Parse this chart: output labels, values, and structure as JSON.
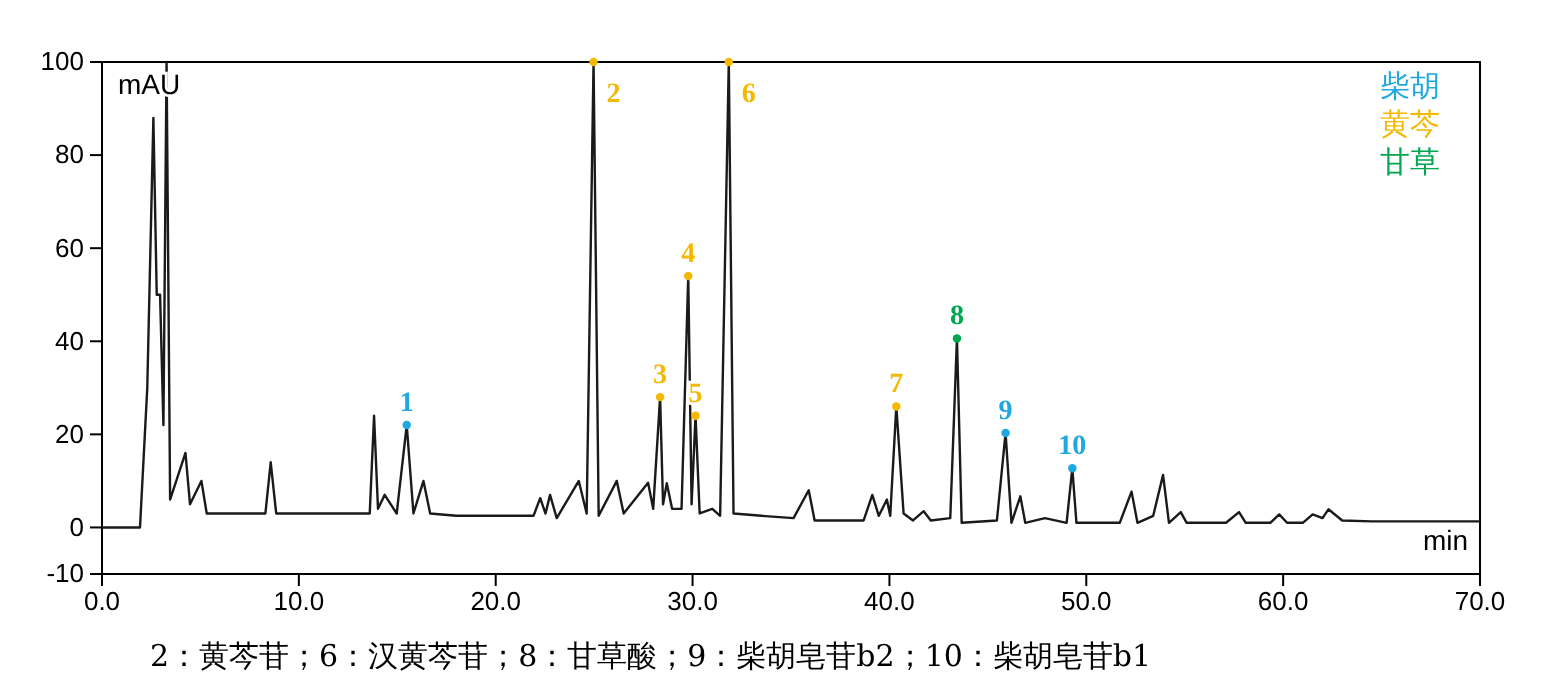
{
  "chart_data": {
    "type": "line",
    "xlabel": "min",
    "ylabel": "mAU",
    "xlim": [
      0,
      70
    ],
    "xticks": [
      {
        "value": 0,
        "label": "0.0"
      },
      {
        "value": 10,
        "label": "10.0"
      },
      {
        "value": 20,
        "label": "20.0"
      },
      {
        "value": 30,
        "label": "30.0"
      },
      {
        "value": 40,
        "label": "40.0"
      },
      {
        "value": 50,
        "label": "50.0"
      },
      {
        "value": 60,
        "label": "60.0"
      },
      {
        "value": 70,
        "label": "70.0"
      }
    ],
    "ylim": [
      -10,
      100
    ],
    "yticks": [
      -10,
      0,
      20,
      40,
      60,
      80,
      100
    ],
    "series": [
      {
        "color": "#1a1a1a",
        "x": [
          0,
          1.93,
          2.3,
          2.61,
          2.78,
          2.95,
          3.12,
          3.28,
          3.46,
          4.24,
          4.47,
          5.05,
          5.32,
          6.5,
          8.3,
          8.57,
          8.85,
          10.5,
          12,
          13.6,
          13.82,
          14.02,
          14.36,
          14.97,
          15.48,
          15.82,
          16.33,
          16.67,
          18,
          20,
          21.92,
          22.26,
          22.53,
          22.76,
          23.1,
          24.22,
          24.62,
          24.97,
          25.23,
          26.15,
          26.5,
          27.74,
          28.0,
          28.35,
          28.5,
          28.69,
          28.96,
          29.44,
          29.78,
          29.95,
          30.15,
          30.36,
          31.0,
          31.4,
          31.84,
          32.08,
          33.5,
          35.13,
          35.9,
          36.2,
          38.69,
          39.13,
          39.46,
          39.87,
          40.04,
          40.35,
          40.72,
          41.2,
          41.74,
          42.1,
          43.09,
          43.43,
          43.67,
          45.46,
          45.9,
          46.2,
          46.65,
          46.9,
          47.9,
          49.0,
          49.29,
          49.5,
          51.7,
          52.3,
          52.6,
          53.4,
          53.9,
          54.2,
          54.8,
          55.1,
          57.1,
          57.76,
          58.1,
          59.35,
          59.8,
          60.2,
          61.0,
          61.5,
          62.0,
          62.3,
          63.0,
          64.5,
          70
        ],
        "values": [
          0,
          0,
          30,
          88,
          50,
          50,
          22,
          100,
          6,
          16,
          5,
          10,
          3,
          3,
          3,
          14,
          3,
          3,
          3,
          3,
          24,
          4,
          7,
          3,
          22,
          3,
          10,
          3,
          2.5,
          2.5,
          2.5,
          6.3,
          3,
          7,
          2,
          10,
          3,
          100,
          2.5,
          10,
          3,
          9.6,
          4,
          28,
          5,
          9.5,
          4,
          4,
          54,
          5,
          24,
          3,
          4,
          2.5,
          100,
          3,
          2.5,
          2,
          8,
          1.5,
          1.5,
          7,
          2.5,
          6,
          2.5,
          26,
          3,
          1.5,
          3.5,
          1.5,
          2,
          40.6,
          1,
          1.5,
          20.3,
          1,
          6.7,
          1,
          2,
          1,
          12.7,
          1,
          1,
          7.7,
          1,
          2.5,
          11.3,
          1,
          3.3,
          1,
          1,
          3.3,
          1,
          1,
          2.8,
          1,
          1,
          2.8,
          2,
          3.9,
          1.5,
          1.3,
          1.3
        ]
      },
      {
        "type": "scatter",
        "marker": "circle",
        "name": "柴胡",
        "color": "#1ea7e1",
        "x": [
          15.48,
          45.9,
          49.29
        ],
        "values": [
          22,
          20.3,
          12.7
        ]
      },
      {
        "type": "scatter",
        "marker": "circle",
        "name": "黄芩",
        "color": "#f5b800",
        "x": [
          24.97,
          28.35,
          29.78,
          30.15,
          31.84,
          40.35
        ],
        "values": [
          100,
          28,
          54,
          24,
          100,
          26
        ]
      },
      {
        "type": "scatter",
        "marker": "circle",
        "name": "甘草",
        "color": "#00a650",
        "x": [
          43.43
        ],
        "values": [
          40.6
        ]
      }
    ],
    "annotations": [
      {
        "text": "1",
        "x": 15.48,
        "y": 22
      },
      {
        "text": "9",
        "x": 45.9,
        "y": 20.3
      },
      {
        "text": "10",
        "x": 49.29,
        "y": 12.7
      },
      {
        "text": "2",
        "x": 24.97,
        "y": 100
      },
      {
        "text": "3",
        "x": 28.35,
        "y": 28
      },
      {
        "text": "4",
        "x": 29.78,
        "y": 54
      },
      {
        "text": "5",
        "x": 30.15,
        "y": 24
      },
      {
        "text": "6",
        "x": 31.84,
        "y": 100
      },
      {
        "text": "7",
        "x": 40.35,
        "y": 26
      },
      {
        "text": "8",
        "x": 43.43,
        "y": 40.6
      },
      "2：黄芩苷；6：汉黄芩苷；8：甘草酸；9：柴胡皂苷b2；10：柴胡皂苷b1"
    ]
  }
}
